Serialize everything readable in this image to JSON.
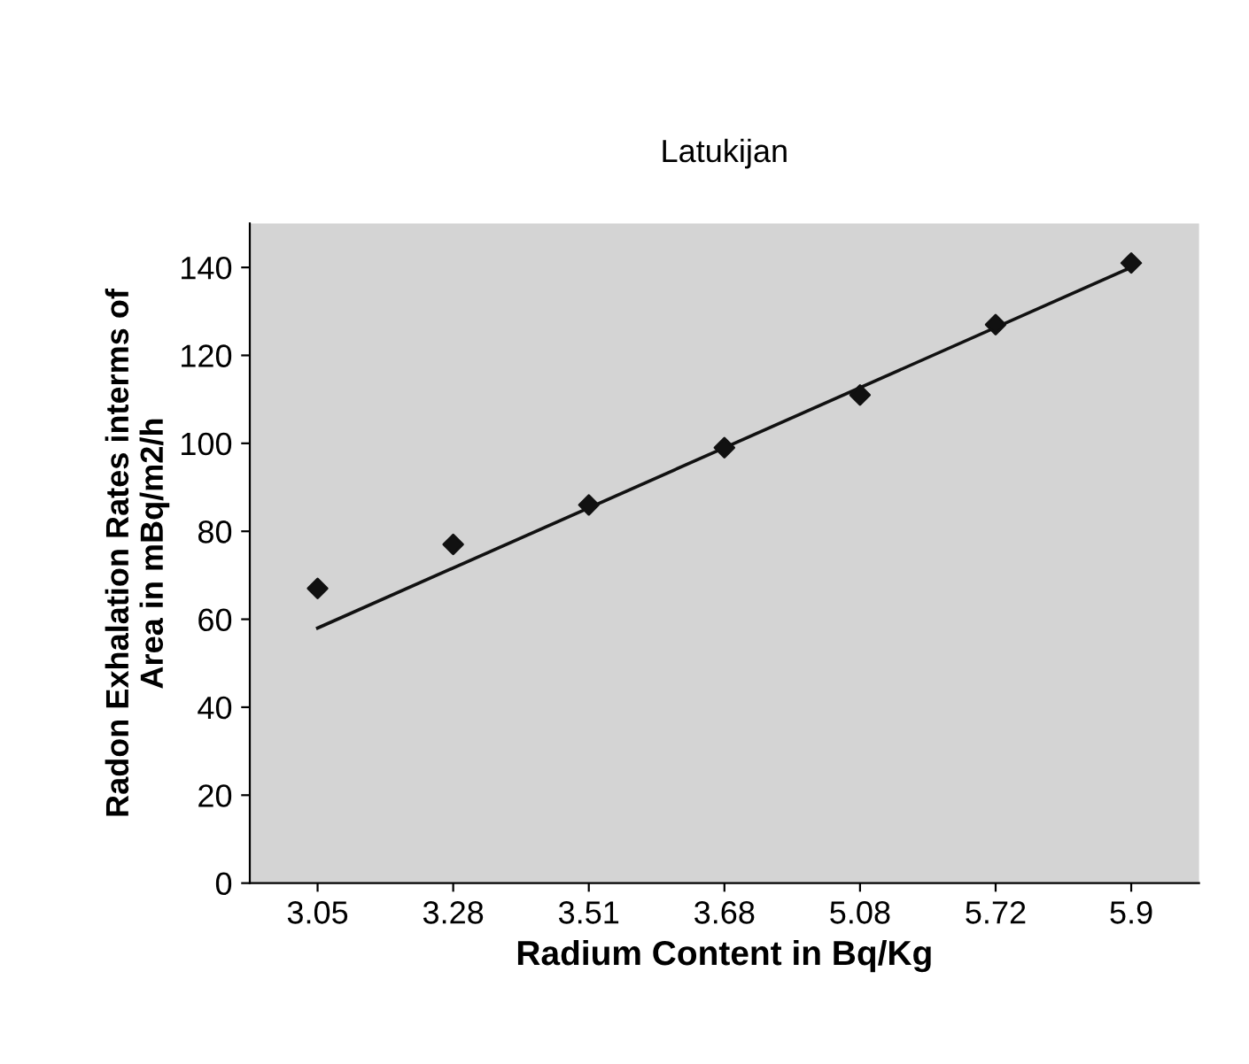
{
  "chart_data": {
    "type": "scatter",
    "title": "Latukijan",
    "xlabel": "Radium Content in Bq/Kg",
    "ylabel": "Radon Exhalation Rates interms of\nArea in mBq/m2/h",
    "categories": [
      "3.05",
      "3.28",
      "3.51",
      "3.68",
      "5.08",
      "5.72",
      "5.9"
    ],
    "series": [
      {
        "color": "#111111",
        "marker": "diamond",
        "values": [
          67,
          77,
          86,
          99,
          111,
          127,
          141
        ]
      },
      {
        "type": "line",
        "color": "#111111",
        "marker": "none",
        "x": [
          "3.05",
          "5.9"
        ],
        "values": [
          58,
          140
        ]
      }
    ],
    "ylim": [
      0,
      150
    ],
    "yticks": [
      0,
      20,
      40,
      60,
      80,
      100,
      120,
      140
    ],
    "grid": false,
    "legend": false
  }
}
